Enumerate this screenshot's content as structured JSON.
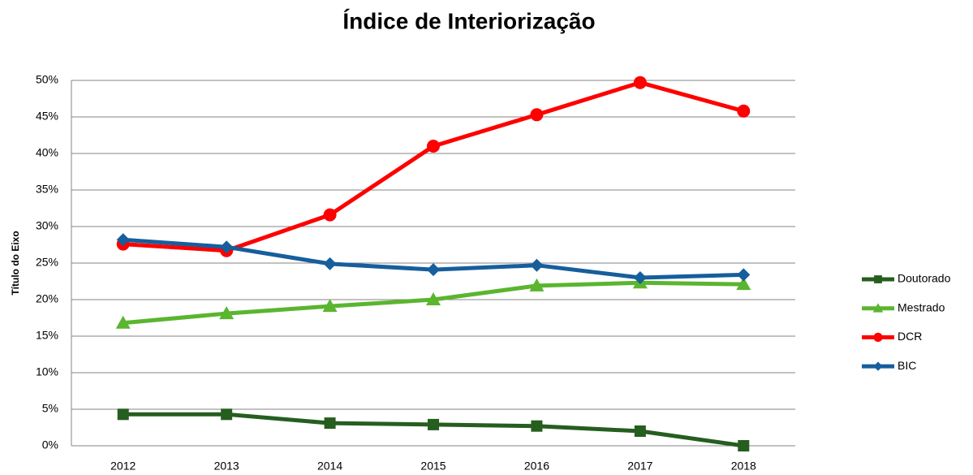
{
  "chart_data": {
    "type": "line",
    "title": "Índice de Interiorização",
    "ylabel": "Título do Eixo",
    "categories": [
      "2012",
      "2013",
      "2014",
      "2015",
      "2016",
      "2017",
      "2018"
    ],
    "series": [
      {
        "name": "Doutorado",
        "color": "#255e1f",
        "marker": "square",
        "values": [
          4.3,
          4.3,
          3.1,
          2.9,
          2.7,
          2.0,
          0
        ]
      },
      {
        "name": "Mestrado",
        "color": "#5ab52f",
        "marker": "triangle",
        "values": [
          16.8,
          18.1,
          19.1,
          20.0,
          21.9,
          22.3,
          22.1
        ]
      },
      {
        "name": "DCR",
        "color": "#ff0000",
        "marker": "circle",
        "values": [
          27.6,
          26.7,
          31.6,
          41.0,
          45.3,
          49.7,
          45.8
        ]
      },
      {
        "name": "BIC",
        "color": "#165e9c",
        "marker": "diamond",
        "values": [
          28.2,
          27.2,
          24.9,
          24.1,
          24.7,
          23.0,
          23.4
        ]
      }
    ],
    "ylim": [
      0,
      50
    ],
    "yticks": [
      {
        "value": 0,
        "label": "0%"
      },
      {
        "value": 5,
        "label": "5%"
      },
      {
        "value": 10,
        "label": "10%"
      },
      {
        "value": 15,
        "label": "15%"
      },
      {
        "value": 20,
        "label": "20%"
      },
      {
        "value": 25,
        "label": "25%"
      },
      {
        "value": 30,
        "label": "30%"
      },
      {
        "value": 35,
        "label": "35%"
      },
      {
        "value": 40,
        "label": "40%"
      },
      {
        "value": 45,
        "label": "45%"
      },
      {
        "value": 50,
        "label": "50%"
      }
    ],
    "grid": true,
    "legend": "right"
  }
}
